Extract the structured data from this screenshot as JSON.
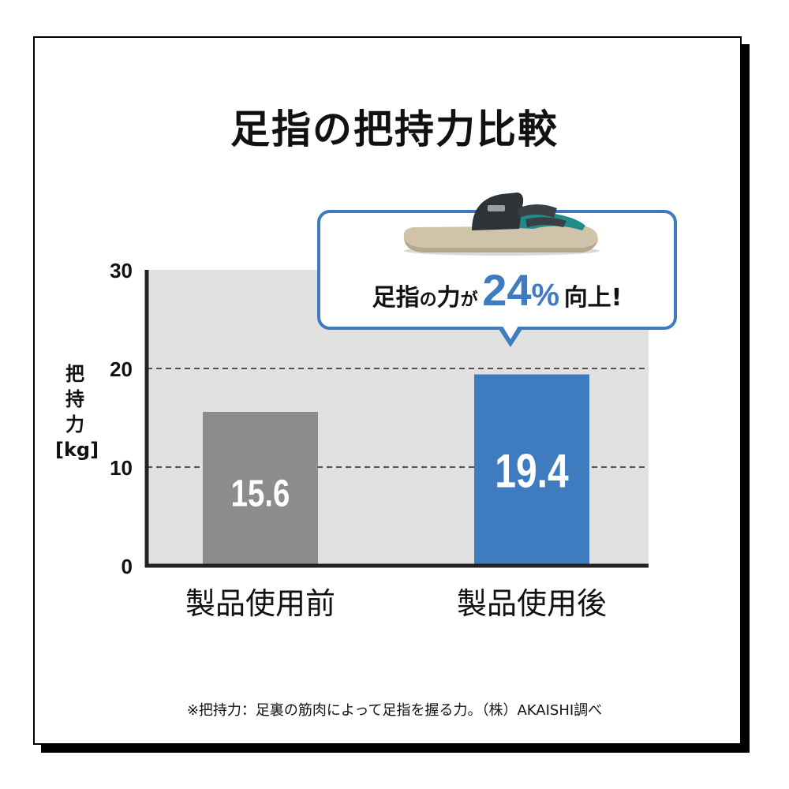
{
  "title": "足指の把持力比較",
  "ylabel_chars": [
    "把",
    "持",
    "力",
    "[kg]"
  ],
  "callout": {
    "part1": "足指",
    "part2": "の",
    "part3": "力",
    "part4": "が",
    "value": "24",
    "percent": "%",
    "part5": "向上!"
  },
  "footnote": "※把持力：足裏の筋肉によって足指を握る力。（株）AKAISHI調べ",
  "chart_data": {
    "type": "bar",
    "categories": [
      "製品使用前",
      "製品使用後"
    ],
    "values": [
      15.6,
      19.4
    ],
    "value_labels": [
      "15.6",
      "19.4"
    ],
    "colors": [
      "#8c8c8c",
      "#3e7bbf"
    ],
    "ylim": [
      0,
      30
    ],
    "yticks": [
      0,
      10,
      20,
      30
    ],
    "ylabel": "把持力 [kg]",
    "grid": "dashed at 10 and 20",
    "plot_background": "#e1e1e1"
  }
}
